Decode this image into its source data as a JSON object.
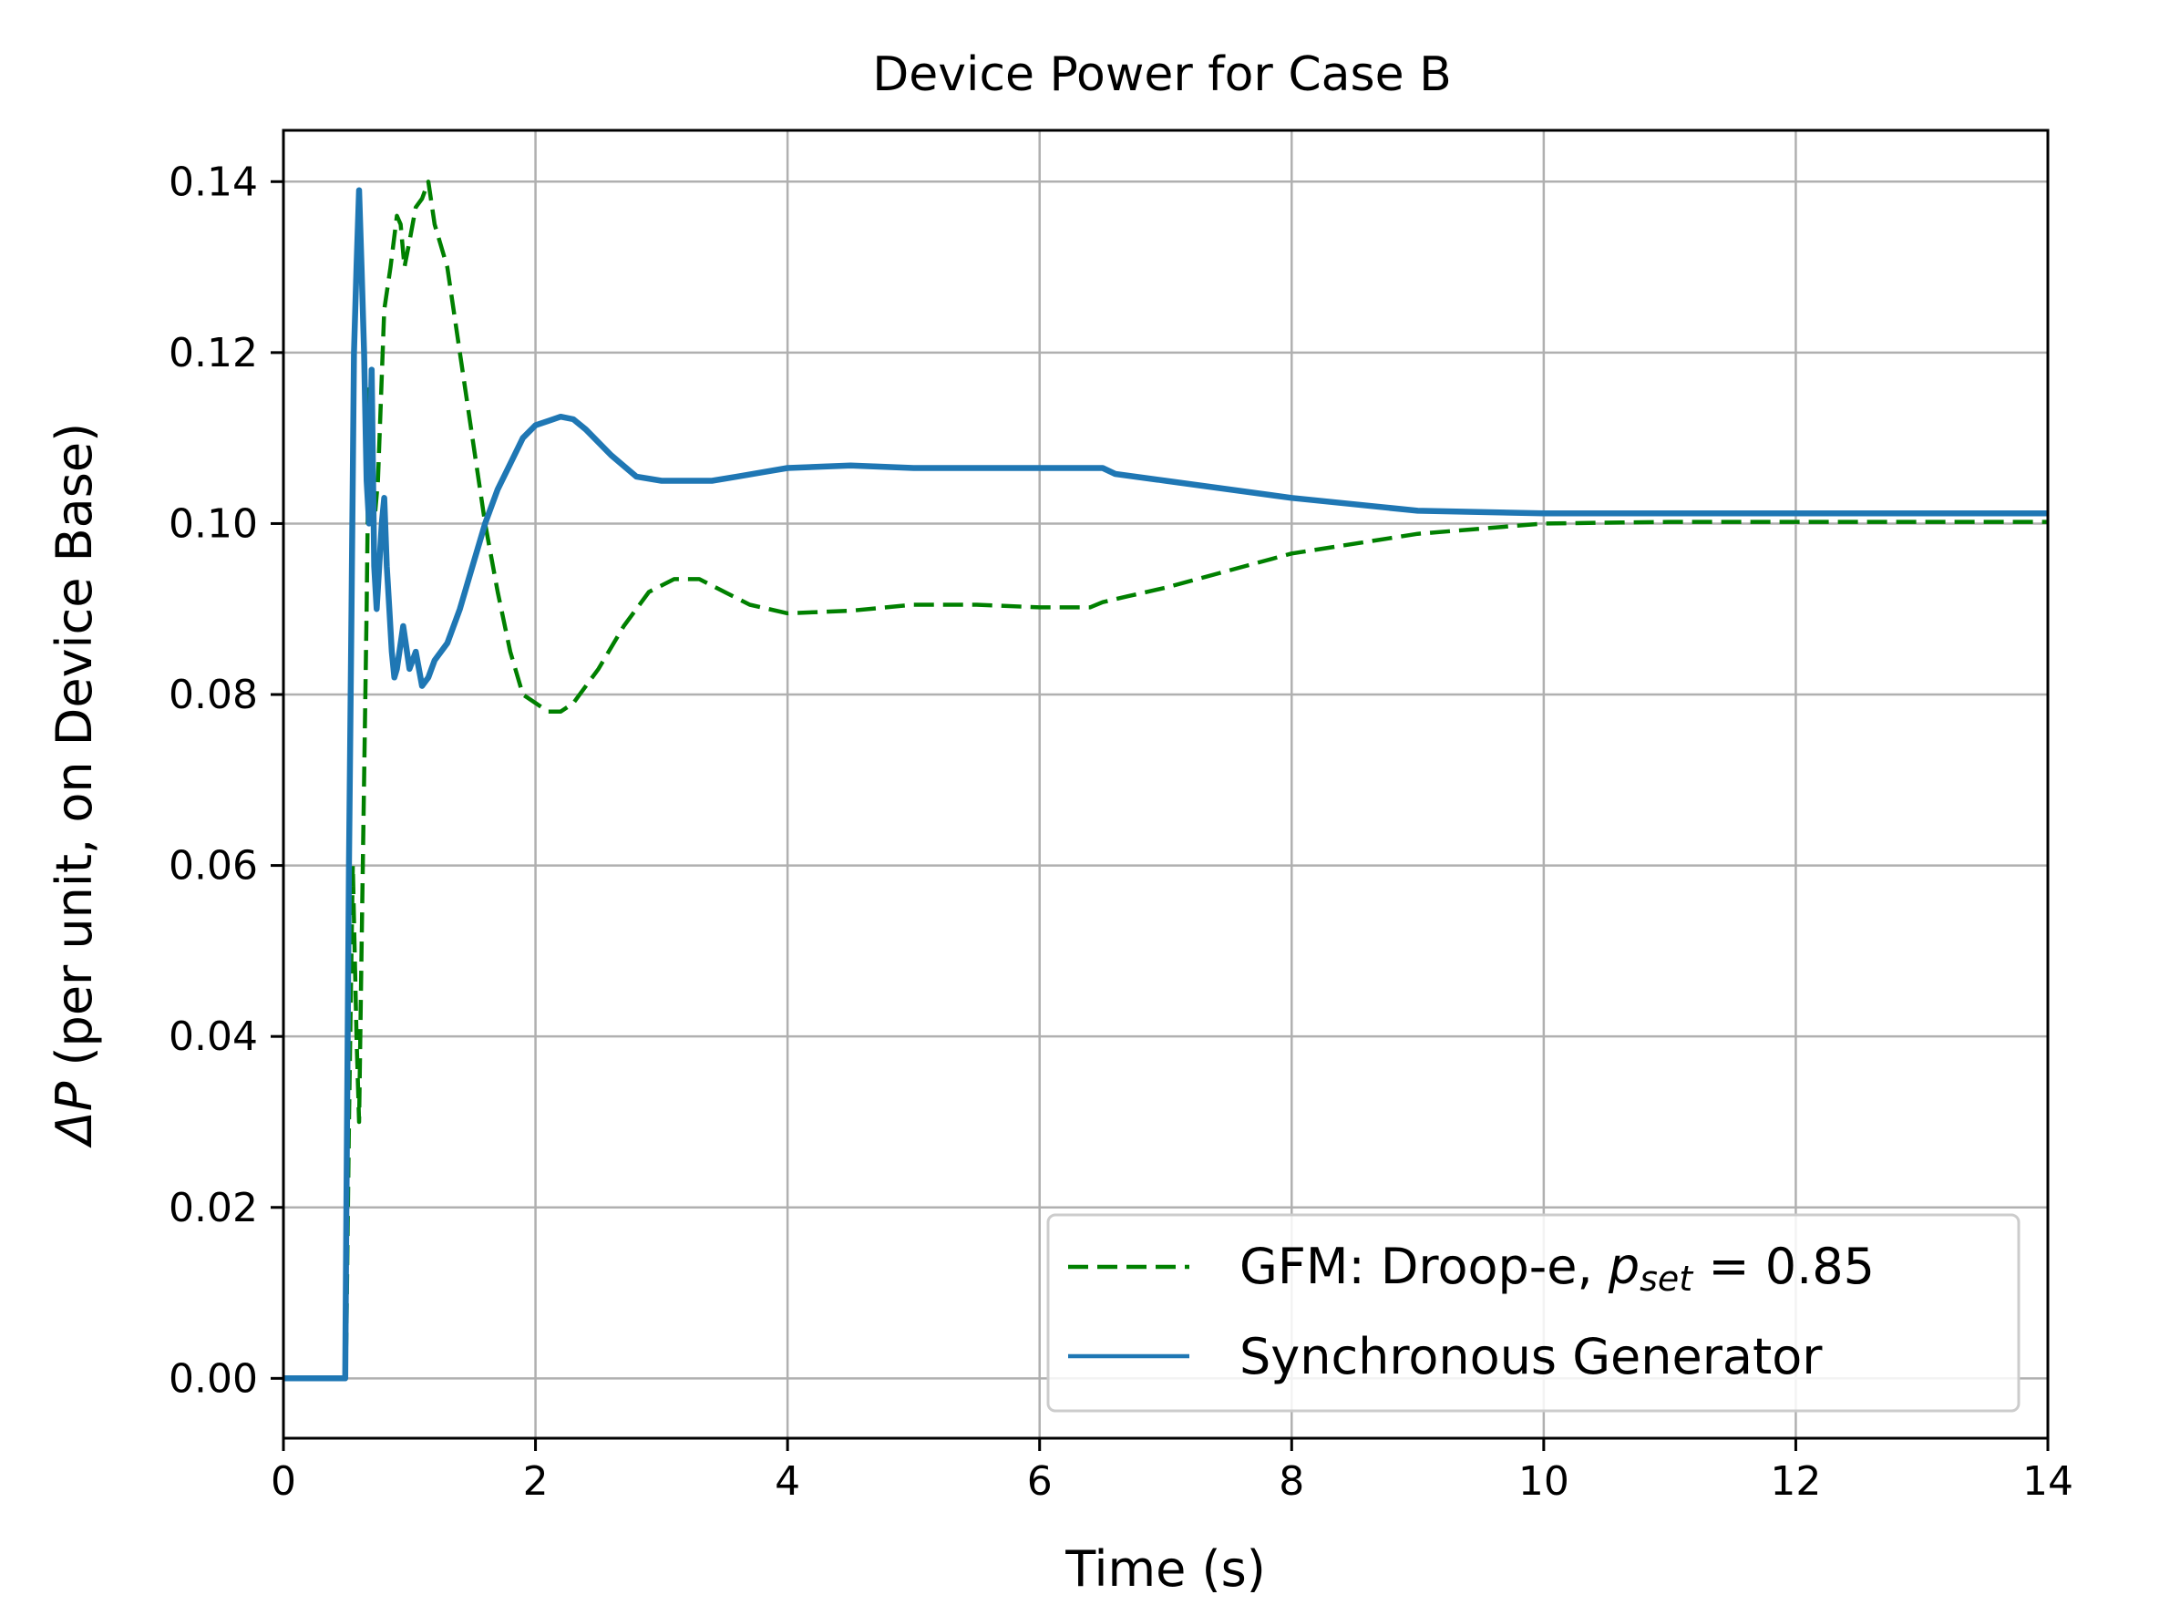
{
  "chart_data": {
    "type": "line",
    "title": "Device Power for Case B",
    "xlabel": "Time (s)",
    "ylabel_symbol": "ΔP",
    "ylabel_text": " (per unit, on Device Base)",
    "xlim": [
      0,
      14
    ],
    "ylim": [
      -0.007,
      0.146
    ],
    "xticks": [
      0,
      2,
      4,
      6,
      8,
      10,
      12,
      14
    ],
    "xtick_labels": [
      "0",
      "2",
      "4",
      "6",
      "8",
      "10",
      "12",
      "14"
    ],
    "yticks": [
      0.0,
      0.02,
      0.04,
      0.06,
      0.08,
      0.1,
      0.12,
      0.14
    ],
    "ytick_labels": [
      "0.00",
      "0.02",
      "0.04",
      "0.06",
      "0.08",
      "0.10",
      "0.12",
      "0.14"
    ],
    "grid": true,
    "legend_position": "lower-right",
    "series": [
      {
        "name": "GFM: Droop-e, p_set = 0.85",
        "legend_prefix": "GFM: Droop-e, ",
        "legend_math_symbol": "p",
        "legend_math_sub": "set",
        "legend_math_rest": " = 0.85",
        "color": "#008000",
        "style": "dashed",
        "x": [
          0,
          0.49,
          0.5,
          0.52,
          0.55,
          0.58,
          0.6,
          0.62,
          0.64,
          0.66,
          0.68,
          0.7,
          0.72,
          0.75,
          0.8,
          0.85,
          0.9,
          0.93,
          0.96,
          1.0,
          1.05,
          1.1,
          1.15,
          1.2,
          1.3,
          1.4,
          1.5,
          1.6,
          1.7,
          1.8,
          1.9,
          2.0,
          2.1,
          2.2,
          2.3,
          2.5,
          2.7,
          2.9,
          3.1,
          3.3,
          3.5,
          3.7,
          4.0,
          4.5,
          5.0,
          5.5,
          6.0,
          6.4,
          6.5,
          6.7,
          7.0,
          8.0,
          9.0,
          10.0,
          11.0,
          12.0,
          14.0
        ],
        "y": [
          0.0,
          0.0,
          0.005,
          0.03,
          0.06,
          0.04,
          0.03,
          0.05,
          0.07,
          0.09,
          0.115,
          0.118,
          0.1,
          0.105,
          0.125,
          0.13,
          0.136,
          0.135,
          0.13,
          0.133,
          0.137,
          0.138,
          0.14,
          0.135,
          0.13,
          0.12,
          0.11,
          0.1,
          0.092,
          0.085,
          0.08,
          0.079,
          0.078,
          0.078,
          0.079,
          0.083,
          0.088,
          0.092,
          0.0935,
          0.0935,
          0.092,
          0.0905,
          0.0895,
          0.0898,
          0.0905,
          0.0905,
          0.0902,
          0.0902,
          0.0908,
          0.0915,
          0.0925,
          0.0965,
          0.0988,
          0.1,
          0.1002,
          0.1002,
          0.1002
        ]
      },
      {
        "name": "Synchronous Generator",
        "color": "#1f77b4",
        "style": "solid",
        "x": [
          0,
          0.49,
          0.5,
          0.52,
          0.54,
          0.56,
          0.58,
          0.6,
          0.62,
          0.64,
          0.66,
          0.68,
          0.7,
          0.72,
          0.74,
          0.76,
          0.78,
          0.8,
          0.82,
          0.84,
          0.86,
          0.88,
          0.9,
          0.95,
          1.0,
          1.05,
          1.1,
          1.15,
          1.2,
          1.3,
          1.4,
          1.5,
          1.6,
          1.7,
          1.8,
          1.9,
          2.0,
          2.1,
          2.2,
          2.3,
          2.4,
          2.6,
          2.8,
          3.0,
          3.2,
          3.4,
          3.6,
          3.8,
          4.0,
          4.5,
          5.0,
          6.0,
          6.5,
          6.6,
          7.0,
          8.0,
          9.0,
          10.0,
          12.0,
          14.0
        ],
        "y": [
          0.0,
          0.0,
          0.02,
          0.06,
          0.09,
          0.12,
          0.13,
          0.139,
          0.13,
          0.12,
          0.105,
          0.1,
          0.118,
          0.095,
          0.09,
          0.095,
          0.1,
          0.103,
          0.095,
          0.09,
          0.085,
          0.082,
          0.083,
          0.088,
          0.083,
          0.085,
          0.081,
          0.082,
          0.084,
          0.086,
          0.09,
          0.095,
          0.1,
          0.104,
          0.107,
          0.11,
          0.1115,
          0.112,
          0.1125,
          0.1122,
          0.111,
          0.108,
          0.1055,
          0.105,
          0.105,
          0.105,
          0.1055,
          0.106,
          0.1065,
          0.1068,
          0.1065,
          0.1065,
          0.1065,
          0.1058,
          0.105,
          0.103,
          0.1015,
          0.1012,
          0.1012,
          0.1012
        ]
      }
    ]
  }
}
